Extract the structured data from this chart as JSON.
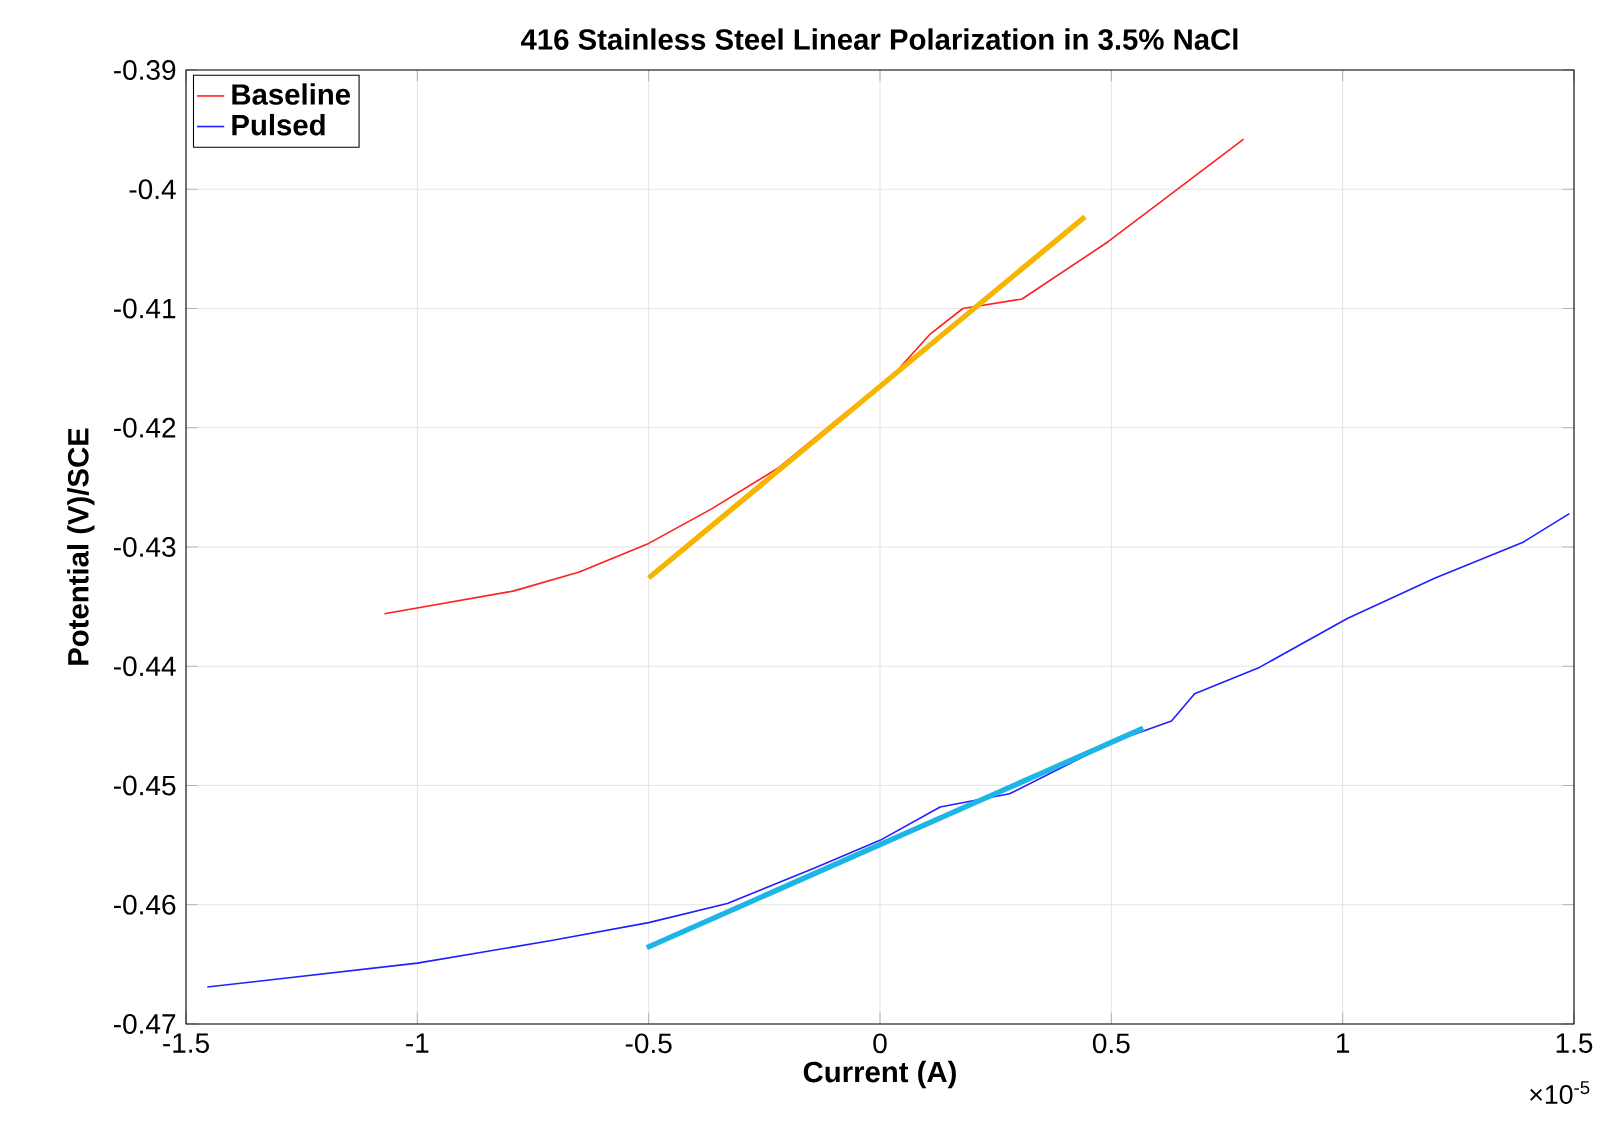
{
  "chart_data": {
    "type": "line",
    "title": "416 Stainless Steel Linear Polarization in 3.5% NaCl",
    "xlabel": "Current (A)",
    "ylabel": "Potential (V)/SCE",
    "annotations": [
      "×10$^{-5}$"
    ],
    "series": [
      {
        "name": "Baseline",
        "color": "#ff2020",
        "x": [
          -1.071,
          -0.793,
          -0.65,
          -0.5,
          -0.364,
          -0.221,
          -0.079,
          0.021,
          0.107,
          0.179,
          0.307,
          0.493,
          0.636,
          0.786
        ],
        "values": [
          -0.4356,
          -0.4337,
          -0.4321,
          -0.4297,
          -0.4268,
          -0.4234,
          -0.4189,
          -0.4159,
          -0.4122,
          -0.41,
          -0.4092,
          -0.4044,
          -0.4002,
          -0.3958
        ]
      },
      {
        "name": "Pulsed",
        "color": "#2020ff",
        "x": [
          -1.454,
          -1.0,
          -0.71,
          -0.5,
          -0.33,
          -0.14,
          0.0,
          0.13,
          0.28,
          0.5,
          0.63,
          0.68,
          0.82,
          1.01,
          1.2,
          1.39,
          1.49
        ],
        "values": [
          -0.4669,
          -0.4649,
          -0.463,
          -0.4615,
          -0.4599,
          -0.4569,
          -0.4546,
          -0.4518,
          -0.4507,
          -0.4464,
          -0.4446,
          -0.4423,
          -0.4401,
          -0.436,
          -0.4326,
          -0.4296,
          -0.4272
        ]
      },
      {
        "color": "#f7b500",
        "x": [
          -0.5,
          0.443
        ],
        "values": [
          -0.4326,
          -0.4023
        ]
      },
      {
        "color": "#1db4e6",
        "x": [
          -0.504,
          0.569
        ],
        "values": [
          -0.4636,
          -0.4452
        ]
      }
    ],
    "xlim": [
      -1.5,
      1.5
    ],
    "ylim": [
      -0.47,
      -0.39
    ],
    "xticks": [
      -1.5,
      -1,
      -0.5,
      0,
      0.5,
      1,
      1.5
    ],
    "yticks": [
      -0.47,
      -0.46,
      -0.45,
      -0.44,
      -0.43,
      -0.42,
      -0.41,
      -0.4,
      -0.39
    ],
    "grid": true,
    "legend": "top left",
    "marker": "none",
    "line_style": "solid"
  }
}
